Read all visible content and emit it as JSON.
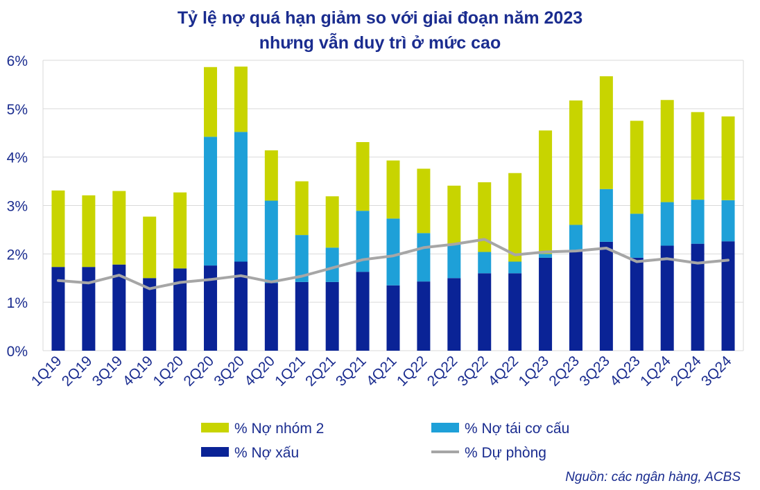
{
  "colors": {
    "no_xau": "#0a2396",
    "no_tai_co_cau": "#1ea0d8",
    "no_nhom_2": "#c8d400",
    "du_phong": "#a6a6a6",
    "text": "#1a2c8f",
    "grid": "#d9d9d9"
  },
  "source_note": "Nguồn: các ngân hàng, ACBS",
  "chart_data": {
    "type": "bar",
    "stacked": true,
    "title": "Tỷ lệ nợ quá hạn giảm so với giai đoạn năm 2023",
    "subtitle": "nhưng vẫn duy trì ở mức cao",
    "xlabel": "",
    "ylabel": "",
    "ylim": [
      0,
      6
    ],
    "yticks": [
      "0%",
      "1%",
      "2%",
      "3%",
      "4%",
      "5%",
      "6%"
    ],
    "grid": true,
    "legend_position": "bottom",
    "categories": [
      "1Q19",
      "2Q19",
      "3Q19",
      "4Q19",
      "1Q20",
      "2Q20",
      "3Q20",
      "4Q20",
      "1Q21",
      "2Q21",
      "3Q21",
      "4Q21",
      "1Q22",
      "2Q22",
      "3Q22",
      "4Q22",
      "1Q23",
      "2Q23",
      "3Q23",
      "4Q23",
      "1Q24",
      "2Q24",
      "3Q24"
    ],
    "series": [
      {
        "name": "% Nợ xấu",
        "kind": "bar",
        "color_key": "no_xau",
        "values": [
          1.73,
          1.73,
          1.78,
          1.5,
          1.7,
          1.76,
          1.84,
          1.4,
          1.42,
          1.42,
          1.63,
          1.35,
          1.43,
          1.5,
          1.6,
          1.6,
          1.92,
          2.05,
          2.25,
          1.92,
          2.17,
          2.21,
          2.26
        ]
      },
      {
        "name": "% Nợ tái cơ cấu",
        "kind": "bar",
        "color_key": "no_tai_co_cau",
        "values": [
          0,
          0,
          0,
          0,
          0,
          2.66,
          2.68,
          1.7,
          0.97,
          0.71,
          1.26,
          1.38,
          1.0,
          0.71,
          0.44,
          0.24,
          0.08,
          0.55,
          1.09,
          0.91,
          0.9,
          0.91,
          0.85
        ]
      },
      {
        "name": "% Nợ nhóm 2",
        "kind": "bar",
        "color_key": "no_nhom_2",
        "values": [
          1.58,
          1.48,
          1.52,
          1.27,
          1.57,
          1.44,
          1.35,
          1.04,
          1.11,
          1.06,
          1.42,
          1.2,
          1.33,
          1.2,
          1.44,
          1.83,
          2.55,
          2.57,
          2.33,
          1.92,
          2.11,
          1.81,
          1.73
        ]
      },
      {
        "name": "% Dự phòng",
        "kind": "line",
        "color_key": "du_phong",
        "values": [
          1.45,
          1.4,
          1.56,
          1.28,
          1.41,
          1.47,
          1.55,
          1.42,
          1.54,
          1.71,
          1.88,
          1.96,
          2.13,
          2.2,
          2.3,
          1.98,
          2.04,
          2.06,
          2.12,
          1.84,
          1.9,
          1.81,
          1.87
        ]
      }
    ]
  }
}
